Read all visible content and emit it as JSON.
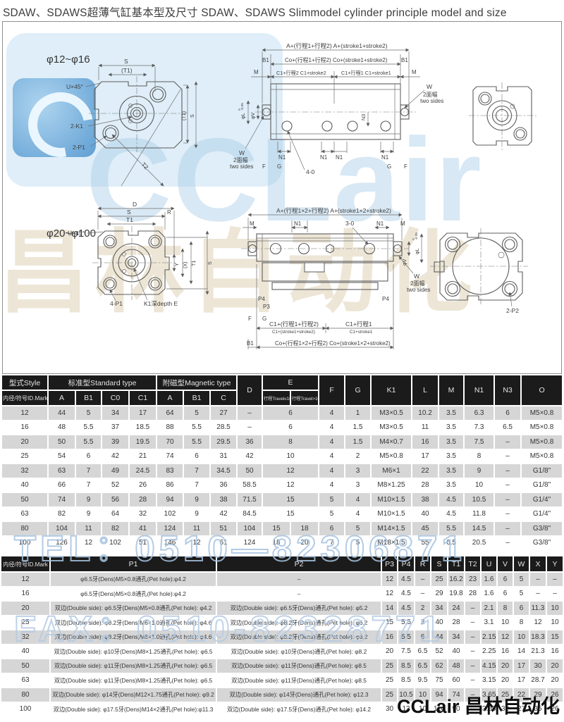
{
  "title": "SDAW、SDAWS超薄气缸基本型及尺寸 SDAW、SDAWS  Slimmodel cylinder principle model and size",
  "watermarks": {
    "tel": "TEL：0510—82306871",
    "fax": "FAX：0510-82328771",
    "brand_big": "CCLair",
    "brand_cn": "昌林自动化",
    "brand_footer": "CCLair 昌林自动化"
  },
  "d": {
    "s1": {
      "range": "φ12~φ16",
      "s": "S",
      "t1": "(T1)",
      "u45": "U×45°",
      "k1": "2-K1",
      "p1": "2-P1",
      "t2": "T2",
      "a": "A+(行程1+行程2)  A+(stroke1+stroke2)",
      "b1": "B1",
      "co": "Co+(行程1+行程2)  Co+(stroke1+stroke2)",
      "m": "M",
      "c1s2": "C1+行程2 C1+stroke2",
      "c1s1": "C1+行程1 C1+stroke1",
      "phiv": "φV",
      "phil": "φL",
      "tol_hi": "0",
      "tol_lo": "-0.05",
      "w": "W",
      "faces_cn": "2面幅",
      "faces_en": "two sides",
      "n1": "N1",
      "n3": "N3",
      "f": "F",
      "g": "G",
      "four_o": "4-0"
    },
    "s2": {
      "range": "φ20~φ100",
      "dd": "D",
      "s": "S",
      "r": "R",
      "t1": "T1",
      "u45": "U×45°",
      "y": "Y",
      "x": "(X)",
      "p1": "4-P1",
      "k1": "K1深depth E",
      "a": "A+(行程1×2+行程2)  A+(stroke1×2+stroke2)",
      "m": "M",
      "n1": "N1",
      "three_o": "3-0",
      "phil": "φL",
      "phiv": "φV",
      "tol_hi": "0",
      "tol_lo": "-0.05",
      "w": "W",
      "faces_cn": "2面幅",
      "faces_en": "two sides",
      "p4": "P4",
      "p3": "P3",
      "f": "F",
      "g": "G",
      "c1a_cn": "C1+(行程1+行程2)",
      "c1a_en": "C1+(stroke1+stroke2)",
      "c1b_cn": "C1+行程1",
      "c1b_en": "C1+stroke1",
      "b1": "B1",
      "co": "Co+(行程1×2+行程2) Co+(stroke1×2+stroke2)",
      "p2": "2-P2"
    }
  },
  "table1": {
    "h1": {
      "style": "型式Style",
      "std": "标准型Standard type",
      "mag": "附磁型Magnetic type",
      "d": "D",
      "e": "E",
      "f": "F",
      "g": "G",
      "k1": "K1",
      "l": "L",
      "m": "M",
      "n1": "N1",
      "n3": "N3",
      "o": "O"
    },
    "h2": {
      "id": "内径/符号ID.Mark",
      "a": "A",
      "b1": "B1",
      "c0": "C0",
      "c1": "C1",
      "a2": "A",
      "b12": "B1",
      "c": "C",
      "e1": "行程Travel≤10",
      "e2": "行程Travel>10"
    },
    "rows": [
      [
        "12",
        "44",
        "5",
        "34",
        "17",
        "64",
        "5",
        "27",
        "–",
        {
          "t": "6",
          "cs": 2
        },
        "4",
        "1",
        "M3×0.5",
        "10.2",
        "3.5",
        "6.3",
        "6",
        "M5×0.8"
      ],
      [
        "16",
        "48",
        "5.5",
        "37",
        "18.5",
        "88",
        "5.5",
        "28.5",
        "–",
        {
          "t": "6",
          "cs": 2
        },
        "4",
        "1.5",
        "M3×0.5",
        "11",
        "3.5",
        "7.3",
        "6.5",
        "M5×0.8"
      ],
      [
        "20",
        "50",
        "5.5",
        "39",
        "19.5",
        "70",
        "5.5",
        "29.5",
        "36",
        {
          "t": "8",
          "cs": 2
        },
        "4",
        "1.5",
        "M4×0.7",
        "16",
        "3.5",
        "7.5",
        "–",
        "M5×0.8"
      ],
      [
        "25",
        "54",
        "6",
        "42",
        "21",
        "74",
        "6",
        "31",
        "42",
        {
          "t": "10",
          "cs": 2
        },
        "4",
        "2",
        "M5×0.8",
        "17",
        "3.5",
        "8",
        "–",
        "M5×0.8"
      ],
      [
        "32",
        "63",
        "7",
        "49",
        "24.5",
        "83",
        "7",
        "34.5",
        "50",
        {
          "t": "12",
          "cs": 2
        },
        "4",
        "3",
        "M6×1",
        "22",
        "3.5",
        "9",
        "–",
        "G1/8\""
      ],
      [
        "40",
        "66",
        "7",
        "52",
        "26",
        "86",
        "7",
        "36",
        "58.5",
        {
          "t": "12",
          "cs": 2
        },
        "4",
        "3",
        "M8×1.25",
        "28",
        "3.5",
        "10",
        "–",
        "G1/8\""
      ],
      [
        "50",
        "74",
        "9",
        "56",
        "28",
        "94",
        "9",
        "38",
        "71.5",
        {
          "t": "15",
          "cs": 2
        },
        "5",
        "4",
        "M10×1.5",
        "38",
        "4.5",
        "10.5",
        "–",
        "G1/4\""
      ],
      [
        "63",
        "82",
        "9",
        "64",
        "32",
        "102",
        "9",
        "42",
        "84.5",
        {
          "t": "15",
          "cs": 2
        },
        "5",
        "4",
        "M10×1.5",
        "40",
        "4.5",
        "11.8",
        "–",
        "G1/4\""
      ],
      [
        "80",
        "104",
        "11",
        "82",
        "41",
        "124",
        "11",
        "51",
        "104",
        "15",
        "18",
        "6",
        "5",
        "M14×1.5",
        "45",
        "5.5",
        "14.5",
        "–",
        "G3/8\""
      ],
      [
        "100",
        "126",
        "12",
        "102",
        "51",
        "146",
        "12",
        "61",
        "124",
        "18",
        "20",
        "7",
        "5",
        "M18×1.5",
        "55",
        "6.5",
        "20.5",
        "–",
        "G3/8\""
      ]
    ]
  },
  "table2": {
    "headers": [
      "内径/符号ID.Mark",
      "P1",
      "P2",
      "P3",
      "P4",
      "R",
      "S",
      "T1",
      "T2",
      "U",
      "V",
      "W",
      "X",
      "Y"
    ],
    "rows": [
      [
        "12",
        "φ6.5牙(Dens)M5×0.8通孔(Pet hole):φ4.2",
        "–",
        "12",
        "4.5",
        "–",
        "25",
        "16.2",
        "23",
        "1.6",
        "6",
        "5",
        "–",
        "–"
      ],
      [
        "16",
        "φ6.5牙(Dens)M5×0.8通孔(Pet hole):φ4.2",
        "–",
        "12",
        "4.5",
        "–",
        "29",
        "19.8",
        "28",
        "1.6",
        "6",
        "5",
        "–",
        "–"
      ],
      [
        "20",
        "双边(Double side): φ6.5牙(Dens)M5×0.8通孔(Pet hole): φ4.2",
        "双边(Double side): φ6.5牙(Dens)通孔(Pet hole): φ5.2",
        "14",
        "4.5",
        "2",
        "34",
        "24",
        "–",
        "2.1",
        "8",
        "6",
        "11.3",
        "10"
      ],
      [
        "25",
        "双边(Double side): φ8.2牙(Dens)M6×1.0通孔(Pet hole): φ4.6",
        "双边(Double side): φ8.2牙(Dens)通孔(Pet hole): φ6.2",
        "15",
        "5.5",
        "2",
        "40",
        "28",
        "–",
        "3.1",
        "10",
        "8",
        "12",
        "10"
      ],
      [
        "32",
        "双边(Double side): φ8.2牙(Dens)M6×1.0通孔(Pet hole): φ4.6",
        "双边(Double side): φ8.2牙(Dens)通孔(Pet hole): φ6.2",
        "16",
        "5.5",
        "6",
        "44",
        "34",
        "–",
        "2.15",
        "12",
        "10",
        "18.3",
        "15"
      ],
      [
        "40",
        "双边(Double side): φ10牙(Dens)M8×1.25通孔(Pet hole): φ6.5",
        "双边(Double side): φ10牙(Dens)通孔(Pet hole): φ8.2",
        "20",
        "7.5",
        "6.5",
        "52",
        "40",
        "–",
        "2.25",
        "16",
        "14",
        "21.3",
        "16"
      ],
      [
        "50",
        "双边(Double side): φ11牙(Dens)M8×1.25通孔(Pet hole): φ6.5",
        "双边(Double side): φ11牙(Dens)通孔(Pet hole): φ8.5",
        "25",
        "8.5",
        "6.5",
        "62",
        "48",
        "–",
        "4.15",
        "20",
        "17",
        "30",
        "20"
      ],
      [
        "63",
        "双边(Double side): φ11牙(Dens)M8×1.25通孔(Pet hole): φ6.5",
        "双边(Double side): φ11牙(Dens)通孔(Pet hole): φ8.5",
        "25",
        "8.5",
        "9.5",
        "75",
        "60",
        "–",
        "3.15",
        "20",
        "17",
        "28.7",
        "20"
      ],
      [
        "80",
        "双边(Double side): φ14牙(Dens)M12×1.75通孔(Pet hole): φ9.2",
        "双边(Double side): φ14牙(Dens)通孔(Pet hole): φ12.3",
        "25",
        "10.5",
        "10",
        "94",
        "74",
        "–",
        "3.65",
        "25",
        "22",
        "29",
        "26"
      ],
      [
        "100",
        "双边(Double side): φ17.5牙(Dens)M14×2通孔(Pet hole):φ11.3",
        "双边(Double side): φ17.5牙(Dens)通孔(Pet hole): φ14.2",
        "30",
        "13",
        "10",
        "114",
        "90",
        "–",
        "3.65",
        "32",
        "27",
        "35",
        "26"
      ]
    ]
  }
}
